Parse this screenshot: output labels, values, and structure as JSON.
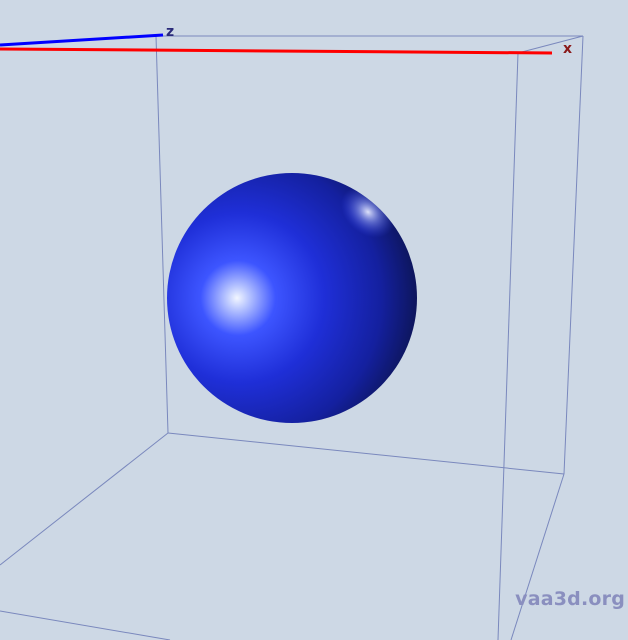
{
  "scene": {
    "axes": {
      "x_label": "x",
      "z_label": "z"
    },
    "object": "sphere-icon",
    "colors": {
      "background": "#cdd8e5",
      "box_edges": "#7a88bd",
      "x_axis": "#ff0000",
      "z_axis": "#0000ff",
      "sphere": "#1a2bd6"
    }
  },
  "watermark": {
    "text": "vaa3d.org"
  }
}
